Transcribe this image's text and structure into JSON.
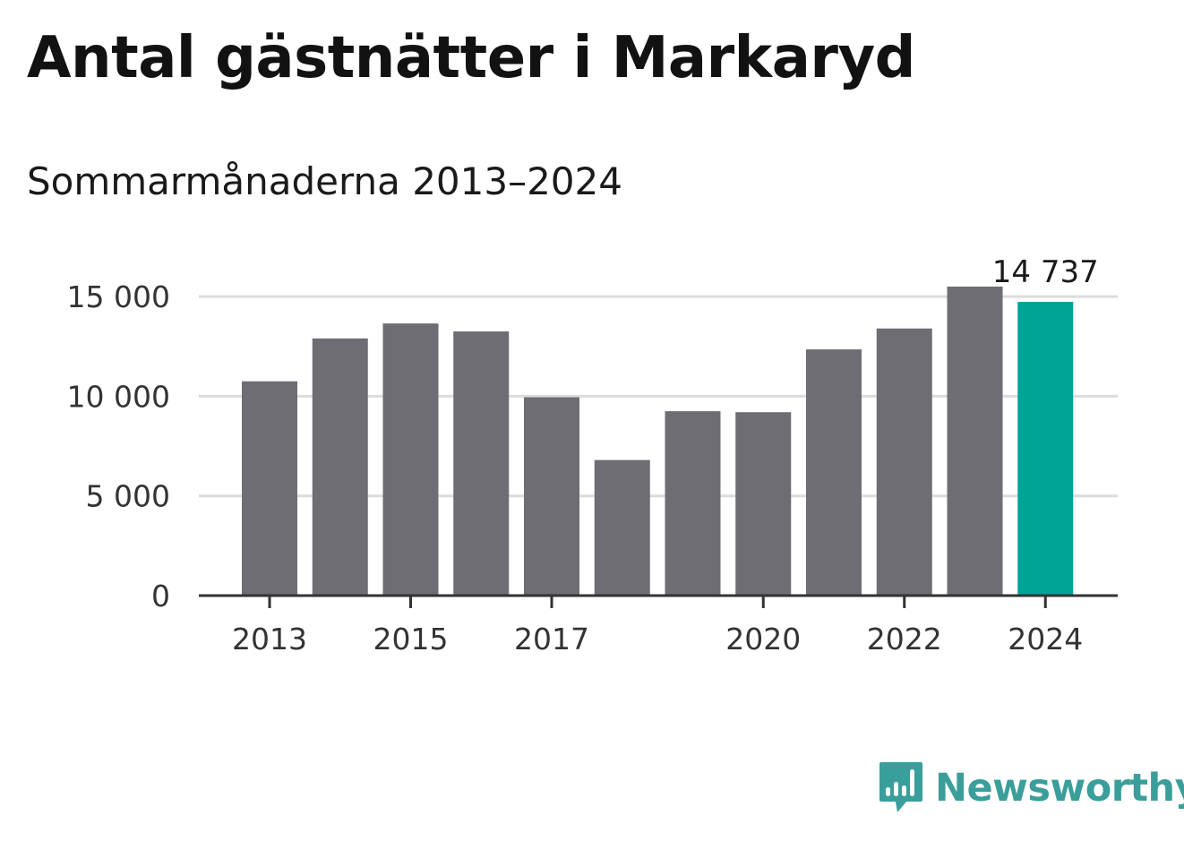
{
  "title": "Antal gästnätter i Markaryd",
  "subtitle": "Sommarmånaderna 2013–2024",
  "brand": {
    "name": "Newsworthy",
    "icon": "newsworthy-logo-icon",
    "color": "#3a9e9a"
  },
  "colors": {
    "bar": "#6e6d73",
    "highlight": "#00a497",
    "grid": "#dcdcdc",
    "axis": "#333333"
  },
  "chart_data": {
    "type": "bar",
    "title": "Antal gästnätter i Markaryd",
    "subtitle": "Sommarmånaderna 2013–2024",
    "categories": [
      "2013",
      "2014",
      "2015",
      "2016",
      "2017",
      "2018",
      "2019",
      "2020",
      "2021",
      "2022",
      "2023",
      "2024"
    ],
    "values": [
      10750,
      12900,
      13650,
      13250,
      9950,
      6800,
      9250,
      9200,
      12350,
      13400,
      15500,
      14737
    ],
    "x_tick_labels": [
      "2013",
      "2015",
      "2017",
      "2020",
      "2022",
      "2024"
    ],
    "y_ticks": [
      0,
      5000,
      10000,
      15000
    ],
    "y_tick_labels": [
      "0",
      "5 000",
      "10 000",
      "15 000"
    ],
    "ylim": [
      0,
      15500
    ],
    "highlight": {
      "category": "2024",
      "label": "14 737"
    },
    "grid": true,
    "legend": "none"
  }
}
